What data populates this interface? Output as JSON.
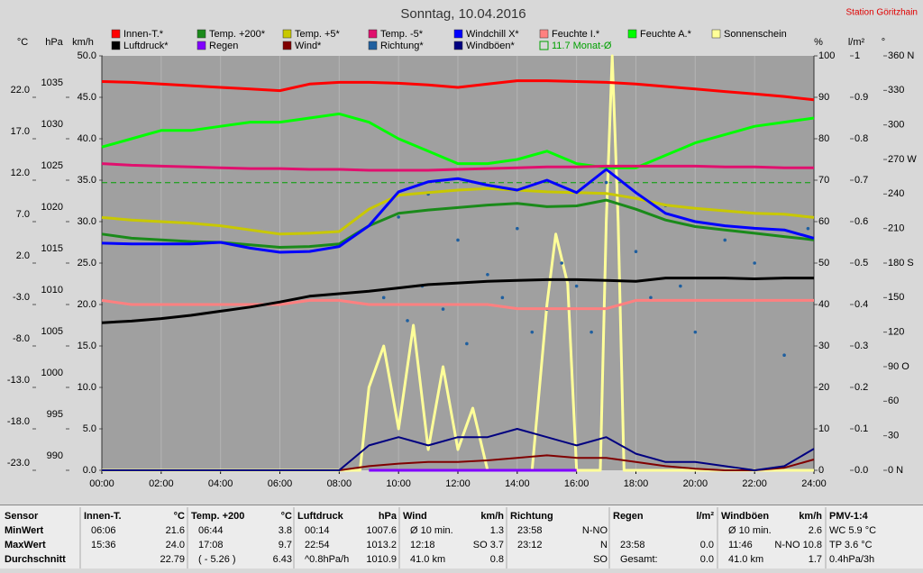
{
  "chart_data": {
    "type": "line",
    "title": "Sonntag, 10.04.2016",
    "station": "Station Göritzhain",
    "x": [
      0,
      1,
      2,
      3,
      4,
      5,
      6,
      7,
      8,
      9,
      10,
      11,
      12,
      13,
      14,
      15,
      16,
      17,
      18,
      19,
      20,
      21,
      22,
      23,
      24
    ],
    "xlim": [
      0,
      24
    ],
    "xticks": [
      {
        "value": 0,
        "label": "00:00"
      },
      {
        "value": 2,
        "label": "02:00"
      },
      {
        "value": 4,
        "label": "04:00"
      },
      {
        "value": 6,
        "label": "06:00"
      },
      {
        "value": 8,
        "label": "08:00"
      },
      {
        "value": 10,
        "label": "10:00"
      },
      {
        "value": 12,
        "label": "12:00"
      },
      {
        "value": 14,
        "label": "14:00"
      },
      {
        "value": 16,
        "label": "16:00"
      },
      {
        "value": 18,
        "label": "18:00"
      },
      {
        "value": 20,
        "label": "20:00"
      },
      {
        "value": 22,
        "label": "22:00"
      },
      {
        "value": 24,
        "label": "24:00"
      }
    ],
    "grid": true,
    "axes": {
      "temp": {
        "label": "°C",
        "ylim": [
          -23,
          27
        ],
        "yticks": [
          {
            "value": -23,
            "label": "-23.0"
          },
          {
            "value": -18,
            "label": "-18.0"
          },
          {
            "value": -13,
            "label": "-13.0"
          },
          {
            "value": -8,
            "label": "-8.0"
          },
          {
            "value": -3,
            "label": "-3.0"
          },
          {
            "value": 2,
            "label": "2.0"
          },
          {
            "value": 7,
            "label": "7.0"
          },
          {
            "value": 12,
            "label": "12.0"
          },
          {
            "value": 17,
            "label": "17.0"
          },
          {
            "value": 22,
            "label": "22.0"
          }
        ]
      },
      "press": {
        "label": "hPa",
        "ylim": [
          990,
          1040
        ],
        "yticks": [
          990,
          995,
          1000,
          1005,
          1010,
          1015,
          1020,
          1025,
          1030,
          1035
        ]
      },
      "speed": {
        "label": "km/h",
        "ylim": [
          0,
          50
        ],
        "yticks": [
          {
            "value": 0,
            "label": "0.0"
          },
          {
            "value": 5,
            "label": "5.0"
          },
          {
            "value": 10,
            "label": "10.0"
          },
          {
            "value": 15,
            "label": "15.0"
          },
          {
            "value": 20,
            "label": "20.0"
          },
          {
            "value": 25,
            "label": "25.0"
          },
          {
            "value": 30,
            "label": "30.0"
          },
          {
            "value": 35,
            "label": "35.0"
          },
          {
            "value": 40,
            "label": "40.0"
          },
          {
            "value": 45,
            "label": "45.0"
          },
          {
            "value": 50,
            "label": "50.0"
          }
        ]
      },
      "pct": {
        "label": "%",
        "ylim": [
          0,
          100
        ],
        "yticks": [
          0,
          10,
          20,
          30,
          40,
          50,
          60,
          70,
          80,
          90,
          100
        ]
      },
      "rain": {
        "label": "l/m²",
        "ylim": [
          0,
          1
        ],
        "yticks": [
          {
            "value": 0,
            "label": "0.0"
          },
          {
            "value": 0.1,
            "label": "0.1"
          },
          {
            "value": 0.2,
            "label": "0.2"
          },
          {
            "value": 0.3,
            "label": "0.3"
          },
          {
            "value": 0.4,
            "label": "0.4"
          },
          {
            "value": 0.5,
            "label": "0.5"
          },
          {
            "value": 0.6,
            "label": "0.6"
          },
          {
            "value": 0.7,
            "label": "0.7"
          },
          {
            "value": 0.8,
            "label": "0.8"
          },
          {
            "value": 0.9,
            "label": "0.9"
          },
          1
        ]
      },
      "dir": {
        "label": "°",
        "ylim": [
          0,
          360
        ],
        "yticks": [
          {
            "value": 0,
            "label": "0  N"
          },
          30,
          60,
          {
            "value": 90,
            "label": "90  O"
          },
          120,
          150,
          {
            "value": 180,
            "label": "180 S"
          },
          210,
          240,
          {
            "value": 270,
            "label": "270 W"
          },
          300,
          330,
          {
            "value": 360,
            "label": "360 N"
          }
        ]
      }
    },
    "series": [
      {
        "name": "Innen-T.*",
        "color": "#ff0000",
        "axis": "temp",
        "values": [
          23.9,
          23.8,
          23.6,
          23.4,
          23.2,
          23.0,
          22.8,
          23.6,
          23.8,
          23.8,
          23.7,
          23.5,
          23.2,
          23.6,
          24.0,
          24.0,
          23.9,
          23.8,
          23.6,
          23.3,
          23.0,
          22.7,
          22.4,
          22.1,
          21.7
        ]
      },
      {
        "name": "Temp. +200*",
        "color": "#1a8a1a",
        "axis": "temp",
        "values": [
          5.5,
          5.0,
          4.8,
          4.6,
          4.5,
          4.2,
          3.9,
          4.0,
          4.3,
          6.5,
          8.0,
          8.4,
          8.7,
          9.0,
          9.2,
          8.8,
          8.9,
          9.6,
          8.5,
          7.2,
          6.4,
          6.0,
          5.6,
          5.2,
          4.8
        ]
      },
      {
        "name": "Temp. +5*",
        "color": "#c8c800",
        "axis": "temp",
        "values": [
          7.5,
          7.2,
          7.0,
          6.8,
          6.5,
          6.0,
          5.5,
          5.6,
          5.8,
          8.5,
          10.2,
          10.5,
          10.8,
          11.0,
          10.8,
          10.6,
          10.5,
          10.4,
          9.8,
          9.0,
          8.6,
          8.3,
          8.0,
          7.9,
          7.5
        ]
      },
      {
        "name": "Temp. -5*",
        "color": "#e0106e",
        "axis": "temp",
        "values": [
          14.0,
          13.8,
          13.7,
          13.6,
          13.5,
          13.4,
          13.4,
          13.3,
          13.3,
          13.2,
          13.2,
          13.2,
          13.3,
          13.4,
          13.5,
          13.6,
          13.6,
          13.7,
          13.7,
          13.7,
          13.7,
          13.6,
          13.6,
          13.5,
          13.5
        ]
      },
      {
        "name": "Windchill X*",
        "color": "#0000ff",
        "axis": "temp",
        "values": [
          4.4,
          4.3,
          4.3,
          4.3,
          4.5,
          3.8,
          3.3,
          3.4,
          4.0,
          6.5,
          10.6,
          11.8,
          12.2,
          11.4,
          10.8,
          12.0,
          10.5,
          13.3,
          10.5,
          8.0,
          7.0,
          6.5,
          6.2,
          6.0,
          5.0
        ]
      },
      {
        "name": "Feuchte I.*",
        "color": "#ff8080",
        "axis": "pct",
        "values": [
          41,
          40,
          40,
          40,
          40,
          40,
          40,
          41,
          41,
          40,
          40,
          40,
          40,
          40,
          39,
          39,
          39,
          39,
          41,
          41,
          41,
          41,
          41,
          41,
          41
        ]
      },
      {
        "name": "Feuchte A.*",
        "color": "#00ff00",
        "axis": "pct",
        "values": [
          78,
          80,
          82,
          82,
          83,
          84,
          84,
          85,
          86,
          84,
          80,
          77,
          74,
          74,
          75,
          77,
          74,
          73,
          73,
          76,
          79,
          81,
          83,
          84,
          85
        ]
      },
      {
        "name": "Sonnenschein",
        "color": "#ffff99",
        "axis": "pct",
        "x": [
          0,
          8.7,
          9.0,
          9.5,
          10.0,
          10.5,
          11.0,
          11.5,
          12.0,
          12.5,
          13.0,
          14.5,
          15.0,
          15.3,
          15.7,
          16.0,
          16.8,
          17.0,
          17.2,
          17.4,
          17.6,
          24
        ],
        "values": [
          0,
          0,
          20,
          30,
          10,
          35,
          5,
          25,
          5,
          15,
          0,
          0,
          40,
          57,
          45,
          0,
          0,
          60,
          100,
          60,
          0,
          0
        ]
      },
      {
        "name": "Luftdruck*",
        "color": "#000000",
        "axis": "press",
        "values": [
          1007.8,
          1008.0,
          1008.3,
          1008.7,
          1009.2,
          1009.7,
          1010.3,
          1011.0,
          1011.3,
          1011.6,
          1012.0,
          1012.4,
          1012.6,
          1012.8,
          1012.9,
          1013.0,
          1013.0,
          1012.9,
          1012.8,
          1013.2,
          1013.2,
          1013.2,
          1013.1,
          1013.2,
          1013.2
        ]
      },
      {
        "name": "Regen",
        "color": "#8000ff",
        "axis": "rain",
        "x": [
          9,
          16
        ],
        "values": [
          0,
          0
        ]
      },
      {
        "name": "Wind*",
        "color": "#800000",
        "axis": "speed",
        "values": [
          0,
          0,
          0,
          0,
          0,
          0,
          0,
          0,
          0,
          0.5,
          0.8,
          1.0,
          1.0,
          1.2,
          1.5,
          1.8,
          1.5,
          1.5,
          1.0,
          0.5,
          0.2,
          0,
          0,
          0.3,
          1.3
        ]
      },
      {
        "name": "Richtung*",
        "color": "#1f5f9f",
        "axis": "dir",
        "dots": true,
        "x": [
          9.5,
          10,
          10.3,
          10.8,
          11,
          11.5,
          12,
          12.3,
          13,
          13.5,
          14,
          14.5,
          15,
          15.5,
          16,
          16.5,
          17,
          18,
          18.5,
          19,
          19.5,
          20,
          21,
          22,
          23,
          23.8
        ],
        "values": [
          150,
          220,
          130,
          160,
          240,
          140,
          200,
          110,
          170,
          150,
          210,
          120,
          140,
          180,
          160,
          120,
          250,
          190,
          150,
          230,
          160,
          120,
          200,
          180,
          100,
          210
        ]
      },
      {
        "name": "Windböen*",
        "color": "#000080",
        "axis": "speed",
        "values": [
          0,
          0,
          0,
          0,
          0,
          0,
          0,
          0,
          0,
          3,
          4,
          3,
          4,
          4,
          5,
          4,
          3,
          4,
          2,
          1,
          1,
          0.5,
          0,
          0.5,
          2.6
        ]
      }
    ],
    "reference": {
      "label": "11.7 Monat-Ø",
      "value": 11.7,
      "axis": "temp",
      "color": "#00a000"
    }
  },
  "stats_table": {
    "blocks": [
      {
        "title": "Sensor",
        "rows": [
          [
            "MinWert"
          ],
          [
            "MaxWert"
          ],
          [
            "Durchschnitt"
          ]
        ]
      },
      {
        "title": "Innen-T.",
        "unit": "°C",
        "rows": [
          [
            "06:06",
            "21.6"
          ],
          [
            "15:36",
            "24.0"
          ],
          [
            null,
            "22.79"
          ]
        ]
      },
      {
        "title": "Temp. +200",
        "unit": "°C",
        "rows": [
          [
            "06:44",
            "3.8"
          ],
          [
            "17:08",
            "9.7"
          ],
          [
            "( - 5.26 )",
            "6.43"
          ]
        ]
      },
      {
        "title": "Luftdruck",
        "unit": "hPa",
        "rows": [
          [
            "00:14",
            "1007.6"
          ],
          [
            "22:54",
            "1013.2"
          ],
          [
            "^0.8hPa/h",
            "1010.9"
          ]
        ]
      },
      {
        "title": "Wind",
        "unit": "km/h",
        "rows": [
          [
            "Ø 10 min.",
            "1.3"
          ],
          [
            "12:18",
            "SO 3.7"
          ],
          [
            "41.0 km",
            "0.8"
          ]
        ]
      },
      {
        "title": "Richtung",
        "rows": [
          [
            "23:58",
            "N-NO"
          ],
          [
            "23:12",
            "N"
          ],
          [
            null,
            "SO"
          ]
        ]
      },
      {
        "title": "Regen",
        "unit": "l/m²",
        "rows": [
          [
            null,
            null
          ],
          [
            "23:58",
            "0.0"
          ],
          [
            "Gesamt:",
            "0.0"
          ]
        ]
      },
      {
        "title": "Windböen",
        "unit": "km/h",
        "rows": [
          [
            "Ø 10 min.",
            "2.6"
          ],
          [
            "11:46",
            "N-NO 10.8"
          ],
          [
            "41.0 km",
            "1.7"
          ]
        ]
      },
      {
        "title": "PMV-1:4",
        "rows": [
          [
            "WC 5.9 °C"
          ],
          [
            "TP 3.6 °C"
          ],
          [
            "0.4hPa/3h"
          ]
        ]
      }
    ]
  }
}
